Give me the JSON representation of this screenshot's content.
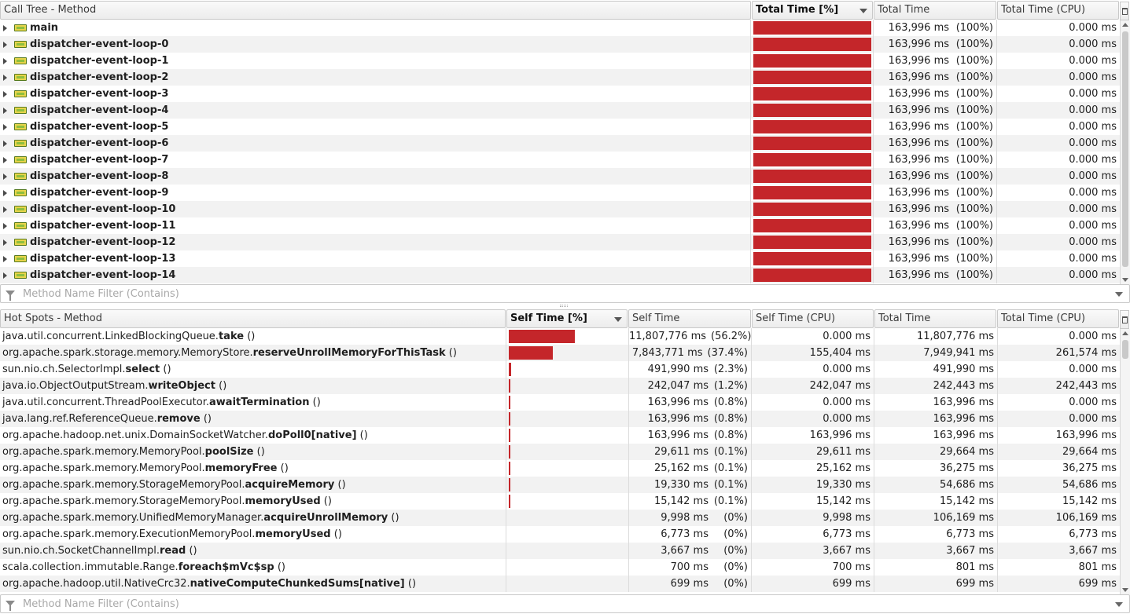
{
  "colors": {
    "bar": "#c4262a",
    "row_alt": "#f2f2f2",
    "header_bg": "#ececec"
  },
  "call_tree": {
    "columns": {
      "method": "Call Tree - Method",
      "total_pct": "Total Time [%]",
      "total_time": "Total Time",
      "total_cpu": "Total Time (CPU)"
    },
    "rows": [
      {
        "name": "main",
        "total_pct": 100,
        "total_time": "163,996 ms",
        "pct_label": "(100%)",
        "cpu": "0.000 ms"
      },
      {
        "name": "dispatcher-event-loop-0",
        "total_pct": 100,
        "total_time": "163,996 ms",
        "pct_label": "(100%)",
        "cpu": "0.000 ms"
      },
      {
        "name": "dispatcher-event-loop-1",
        "total_pct": 100,
        "total_time": "163,996 ms",
        "pct_label": "(100%)",
        "cpu": "0.000 ms"
      },
      {
        "name": "dispatcher-event-loop-2",
        "total_pct": 100,
        "total_time": "163,996 ms",
        "pct_label": "(100%)",
        "cpu": "0.000 ms"
      },
      {
        "name": "dispatcher-event-loop-3",
        "total_pct": 100,
        "total_time": "163,996 ms",
        "pct_label": "(100%)",
        "cpu": "0.000 ms"
      },
      {
        "name": "dispatcher-event-loop-4",
        "total_pct": 100,
        "total_time": "163,996 ms",
        "pct_label": "(100%)",
        "cpu": "0.000 ms"
      },
      {
        "name": "dispatcher-event-loop-5",
        "total_pct": 100,
        "total_time": "163,996 ms",
        "pct_label": "(100%)",
        "cpu": "0.000 ms"
      },
      {
        "name": "dispatcher-event-loop-6",
        "total_pct": 100,
        "total_time": "163,996 ms",
        "pct_label": "(100%)",
        "cpu": "0.000 ms"
      },
      {
        "name": "dispatcher-event-loop-7",
        "total_pct": 100,
        "total_time": "163,996 ms",
        "pct_label": "(100%)",
        "cpu": "0.000 ms"
      },
      {
        "name": "dispatcher-event-loop-8",
        "total_pct": 100,
        "total_time": "163,996 ms",
        "pct_label": "(100%)",
        "cpu": "0.000 ms"
      },
      {
        "name": "dispatcher-event-loop-9",
        "total_pct": 100,
        "total_time": "163,996 ms",
        "pct_label": "(100%)",
        "cpu": "0.000 ms"
      },
      {
        "name": "dispatcher-event-loop-10",
        "total_pct": 100,
        "total_time": "163,996 ms",
        "pct_label": "(100%)",
        "cpu": "0.000 ms"
      },
      {
        "name": "dispatcher-event-loop-11",
        "total_pct": 100,
        "total_time": "163,996 ms",
        "pct_label": "(100%)",
        "cpu": "0.000 ms"
      },
      {
        "name": "dispatcher-event-loop-12",
        "total_pct": 100,
        "total_time": "163,996 ms",
        "pct_label": "(100%)",
        "cpu": "0.000 ms"
      },
      {
        "name": "dispatcher-event-loop-13",
        "total_pct": 100,
        "total_time": "163,996 ms",
        "pct_label": "(100%)",
        "cpu": "0.000 ms"
      },
      {
        "name": "dispatcher-event-loop-14",
        "total_pct": 100,
        "total_time": "163,996 ms",
        "pct_label": "(100%)",
        "cpu": "0.000 ms"
      }
    ],
    "filter_placeholder": "Method Name Filter (Contains)"
  },
  "hot_spots": {
    "columns": {
      "method": "Hot Spots - Method",
      "self_pct": "Self Time [%]",
      "self_time": "Self Time",
      "self_cpu": "Self Time (CPU)",
      "total_time": "Total Time",
      "total_cpu": "Total Time (CPU)"
    },
    "rows": [
      {
        "prefix": "java.util.concurrent.LinkedBlockingQueue.",
        "method": "take",
        "suffix": " ()",
        "self_pct": 56.2,
        "self_time": "11,807,776 ms",
        "pct_label": "(56.2%)",
        "self_cpu": "0.000 ms",
        "total_time": "11,807,776 ms",
        "total_cpu": "0.000 ms"
      },
      {
        "prefix": "org.apache.spark.storage.memory.MemoryStore.",
        "method": "reserveUnrollMemoryForThisTask",
        "suffix": " ()",
        "self_pct": 37.4,
        "self_time": "7,843,771 ms",
        "pct_label": "(37.4%)",
        "self_cpu": "155,404 ms",
        "total_time": "7,949,941 ms",
        "total_cpu": "261,574 ms"
      },
      {
        "prefix": "sun.nio.ch.SelectorImpl.",
        "method": "select",
        "suffix": " ()",
        "self_pct": 2.3,
        "self_time": "491,990 ms",
        "pct_label": "(2.3%)",
        "self_cpu": "0.000 ms",
        "total_time": "491,990 ms",
        "total_cpu": "0.000 ms"
      },
      {
        "prefix": "java.io.ObjectOutputStream.",
        "method": "writeObject",
        "suffix": " ()",
        "self_pct": 1.2,
        "self_time": "242,047 ms",
        "pct_label": "(1.2%)",
        "self_cpu": "242,047 ms",
        "total_time": "242,443 ms",
        "total_cpu": "242,443 ms"
      },
      {
        "prefix": "java.util.concurrent.ThreadPoolExecutor.",
        "method": "awaitTermination",
        "suffix": " ()",
        "self_pct": 0.8,
        "self_time": "163,996 ms",
        "pct_label": "(0.8%)",
        "self_cpu": "0.000 ms",
        "total_time": "163,996 ms",
        "total_cpu": "0.000 ms"
      },
      {
        "prefix": "java.lang.ref.ReferenceQueue.",
        "method": "remove",
        "suffix": " ()",
        "self_pct": 0.8,
        "self_time": "163,996 ms",
        "pct_label": "(0.8%)",
        "self_cpu": "0.000 ms",
        "total_time": "163,996 ms",
        "total_cpu": "0.000 ms"
      },
      {
        "prefix": "org.apache.hadoop.net.unix.DomainSocketWatcher.",
        "method": "doPoll0[native]",
        "suffix": " ()",
        "self_pct": 0.8,
        "self_time": "163,996 ms",
        "pct_label": "(0.8%)",
        "self_cpu": "163,996 ms",
        "total_time": "163,996 ms",
        "total_cpu": "163,996 ms"
      },
      {
        "prefix": "org.apache.spark.memory.MemoryPool.",
        "method": "poolSize",
        "suffix": " ()",
        "self_pct": 0.1,
        "self_time": "29,611 ms",
        "pct_label": "(0.1%)",
        "self_cpu": "29,611 ms",
        "total_time": "29,664 ms",
        "total_cpu": "29,664 ms"
      },
      {
        "prefix": "org.apache.spark.memory.MemoryPool.",
        "method": "memoryFree",
        "suffix": " ()",
        "self_pct": 0.1,
        "self_time": "25,162 ms",
        "pct_label": "(0.1%)",
        "self_cpu": "25,162 ms",
        "total_time": "36,275 ms",
        "total_cpu": "36,275 ms"
      },
      {
        "prefix": "org.apache.spark.memory.StorageMemoryPool.",
        "method": "acquireMemory",
        "suffix": " ()",
        "self_pct": 0.1,
        "self_time": "19,330 ms",
        "pct_label": "(0.1%)",
        "self_cpu": "19,330 ms",
        "total_time": "54,686 ms",
        "total_cpu": "54,686 ms"
      },
      {
        "prefix": "org.apache.spark.memory.StorageMemoryPool.",
        "method": "memoryUsed",
        "suffix": " ()",
        "self_pct": 0.1,
        "self_time": "15,142 ms",
        "pct_label": "(0.1%)",
        "self_cpu": "15,142 ms",
        "total_time": "15,142 ms",
        "total_cpu": "15,142 ms"
      },
      {
        "prefix": "org.apache.spark.memory.UnifiedMemoryManager.",
        "method": "acquireUnrollMemory",
        "suffix": " ()",
        "self_pct": 0,
        "self_time": "9,998 ms",
        "pct_label": "(0%)",
        "self_cpu": "9,998 ms",
        "total_time": "106,169 ms",
        "total_cpu": "106,169 ms"
      },
      {
        "prefix": "org.apache.spark.memory.ExecutionMemoryPool.",
        "method": "memoryUsed",
        "suffix": " ()",
        "self_pct": 0,
        "self_time": "6,773 ms",
        "pct_label": "(0%)",
        "self_cpu": "6,773 ms",
        "total_time": "6,773 ms",
        "total_cpu": "6,773 ms"
      },
      {
        "prefix": "sun.nio.ch.SocketChannelImpl.",
        "method": "read",
        "suffix": " ()",
        "self_pct": 0,
        "self_time": "3,667 ms",
        "pct_label": "(0%)",
        "self_cpu": "3,667 ms",
        "total_time": "3,667 ms",
        "total_cpu": "3,667 ms"
      },
      {
        "prefix": "scala.collection.immutable.Range.",
        "method": "foreach$mVc$sp",
        "suffix": " ()",
        "self_pct": 0,
        "self_time": "700 ms",
        "pct_label": "(0%)",
        "self_cpu": "700 ms",
        "total_time": "801 ms",
        "total_cpu": "801 ms"
      },
      {
        "prefix": "org.apache.hadoop.util.NativeCrc32.",
        "method": "nativeComputeChunkedSums[native]",
        "suffix": " ()",
        "self_pct": 0,
        "self_time": "699 ms",
        "pct_label": "(0%)",
        "self_cpu": "699 ms",
        "total_time": "699 ms",
        "total_cpu": "699 ms"
      }
    ],
    "filter_placeholder": "Method Name Filter (Contains)"
  }
}
